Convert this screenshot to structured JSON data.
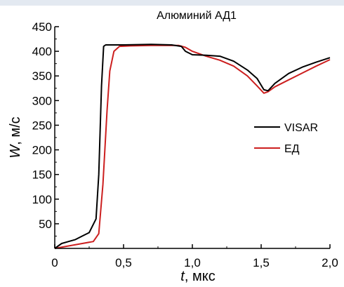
{
  "chart_data": {
    "type": "line",
    "title": "Алюминий АД1",
    "xlabel": {
      "var": "t",
      "rest": ", мкс"
    },
    "ylabel": {
      "var": "W",
      "rest": ", м/с"
    },
    "xlim": [
      0,
      2.0
    ],
    "ylim": [
      0,
      450
    ],
    "xticks": [
      0,
      0.5,
      1.0,
      1.5,
      2.0
    ],
    "xtick_labels": [
      "0",
      "0,5",
      "1,0",
      "1,5",
      "2,0"
    ],
    "yticks": [
      50,
      100,
      150,
      200,
      250,
      300,
      350,
      400,
      450
    ],
    "ytick_labels": [
      "50",
      "100",
      "150",
      "200",
      "250",
      "300",
      "350",
      "400",
      "450"
    ],
    "grid": false,
    "legend_position": "right",
    "series": [
      {
        "name": "VISAR",
        "color": "#000000",
        "points": [
          [
            0.0,
            0
          ],
          [
            0.05,
            10
          ],
          [
            0.1,
            14
          ],
          [
            0.15,
            18
          ],
          [
            0.2,
            25
          ],
          [
            0.25,
            32
          ],
          [
            0.3,
            60
          ],
          [
            0.32,
            150
          ],
          [
            0.34,
            330
          ],
          [
            0.355,
            410
          ],
          [
            0.37,
            413
          ],
          [
            0.5,
            413
          ],
          [
            0.7,
            414
          ],
          [
            0.85,
            413
          ],
          [
            0.92,
            410
          ],
          [
            0.95,
            400
          ],
          [
            1.0,
            393
          ],
          [
            1.1,
            392
          ],
          [
            1.2,
            390
          ],
          [
            1.3,
            380
          ],
          [
            1.4,
            362
          ],
          [
            1.47,
            345
          ],
          [
            1.52,
            322
          ],
          [
            1.55,
            320
          ],
          [
            1.6,
            335
          ],
          [
            1.7,
            355
          ],
          [
            1.8,
            368
          ],
          [
            1.9,
            378
          ],
          [
            2.0,
            387
          ]
        ]
      },
      {
        "name": "ЕД",
        "color": "#cc1f1f",
        "points": [
          [
            0.0,
            0
          ],
          [
            0.1,
            5
          ],
          [
            0.2,
            10
          ],
          [
            0.28,
            14
          ],
          [
            0.32,
            30
          ],
          [
            0.35,
            130
          ],
          [
            0.38,
            280
          ],
          [
            0.4,
            360
          ],
          [
            0.43,
            400
          ],
          [
            0.47,
            410
          ],
          [
            0.55,
            411
          ],
          [
            0.7,
            412
          ],
          [
            0.8,
            412
          ],
          [
            0.9,
            412
          ],
          [
            0.95,
            408
          ],
          [
            1.0,
            400
          ],
          [
            1.1,
            390
          ],
          [
            1.2,
            382
          ],
          [
            1.3,
            370
          ],
          [
            1.4,
            350
          ],
          [
            1.47,
            330
          ],
          [
            1.52,
            315
          ],
          [
            1.55,
            318
          ],
          [
            1.6,
            328
          ],
          [
            1.7,
            342
          ],
          [
            1.8,
            356
          ],
          [
            1.9,
            370
          ],
          [
            2.0,
            383
          ]
        ]
      }
    ]
  }
}
